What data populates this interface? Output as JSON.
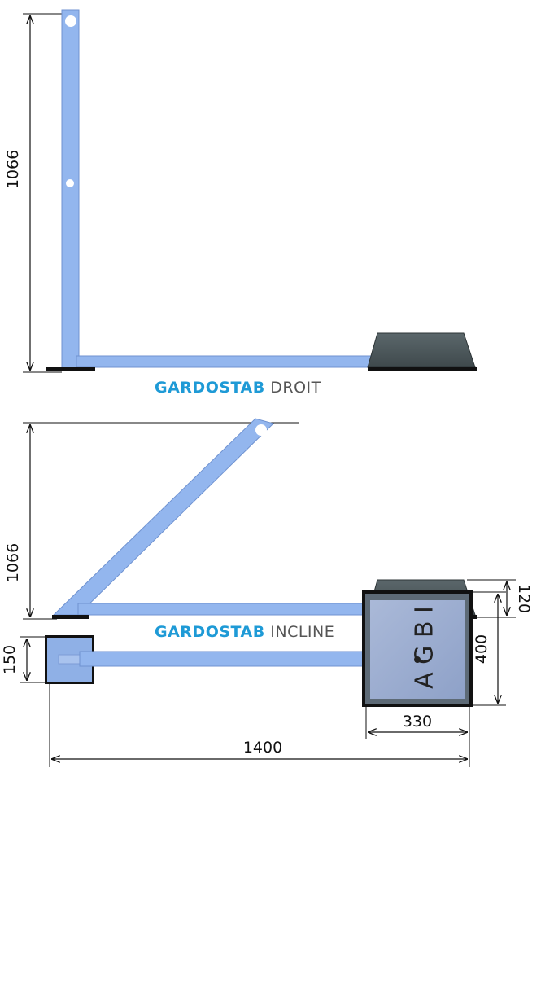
{
  "views": {
    "droit": {
      "height_dim": "1066",
      "caption_brand": "GARDOSTAB",
      "caption_rest": "DROIT"
    },
    "incline": {
      "height_dim": "1066",
      "base_height_dim": "120",
      "caption_brand": "GARDOSTAB",
      "caption_rest": "INCLINE"
    },
    "top": {
      "small_plate_dim": "150",
      "base_depth_dim": "400",
      "base_width_dim": "330",
      "total_length_dim": "1400",
      "base_marking": "A G B I"
    }
  },
  "colors": {
    "bar": "#93b6ee",
    "bar_edge": "#6f92d0",
    "base": "#4e5a5e",
    "brand": "#1e9ad6",
    "line": "#111111"
  }
}
